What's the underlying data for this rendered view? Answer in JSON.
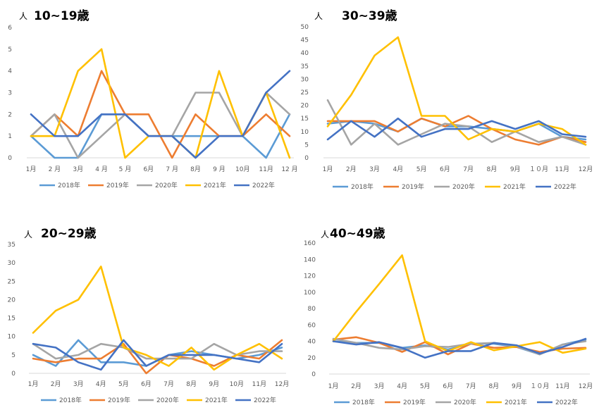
{
  "chart_data": [
    {
      "type": "line",
      "title": "10~19歳",
      "ylabel": "人",
      "categories": [
        "1月",
        "2 月",
        "3月",
        "4 月",
        "5 月",
        "6月",
        "7 月",
        "8月",
        "9 月",
        "10月",
        "11月",
        "12 月"
      ],
      "ylim": [
        0,
        6
      ],
      "yticks": [
        "0",
        "1",
        "2",
        "3",
        "4",
        "5",
        "6"
      ],
      "grid": false,
      "legend": "bottom",
      "series": [
        {
          "name": "2018年",
          "color": "#5b9bd5",
          "values": [
            1,
            0,
            0,
            2,
            2,
            1,
            1,
            1,
            1,
            1,
            0,
            2
          ]
        },
        {
          "name": "2019年",
          "color": "#ed7d31",
          "values": [
            1,
            2,
            1,
            4,
            2,
            2,
            0,
            2,
            1,
            1,
            2,
            1
          ]
        },
        {
          "name": "2020年",
          "color": "#a5a5a5",
          "values": [
            1,
            2,
            0,
            1,
            2,
            1,
            1,
            3,
            3,
            1,
            3,
            2
          ]
        },
        {
          "name": "2021年",
          "color": "#ffc000",
          "values": [
            1,
            1,
            4,
            5,
            0,
            1,
            1,
            0,
            4,
            1,
            3,
            0
          ]
        },
        {
          "name": "2022年",
          "color": "#4472c4",
          "values": [
            2,
            1,
            1,
            2,
            2,
            1,
            1,
            0,
            1,
            1,
            3,
            4
          ]
        }
      ]
    },
    {
      "type": "line",
      "title": "30~39歳",
      "ylabel": "人",
      "categories": [
        "1月",
        "2月",
        "3月",
        "4月",
        "5月",
        "6月",
        "7月",
        "8月",
        "9月",
        "１０月",
        "11月",
        "12月"
      ],
      "ylim": [
        0,
        50
      ],
      "yticks": [
        "0",
        "5",
        "10",
        "15",
        "20",
        "25",
        "30",
        "35",
        "40",
        "45",
        "50"
      ],
      "grid": false,
      "legend": "bottom",
      "series": [
        {
          "name": "2018年",
          "color": "#5b9bd5",
          "values": [
            13,
            14,
            13,
            10,
            15,
            12,
            12,
            11,
            10,
            13,
            8,
            7
          ]
        },
        {
          "name": "2019年",
          "color": "#ed7d31",
          "values": [
            14,
            14,
            14,
            10,
            15,
            12,
            16,
            11,
            7,
            5,
            8,
            6
          ]
        },
        {
          "name": "2020年",
          "color": "#a5a5a5",
          "values": [
            22,
            5,
            13,
            5,
            9,
            13,
            12,
            6,
            10,
            6,
            8,
            5
          ]
        },
        {
          "name": "2021年",
          "color": "#ffc000",
          "values": [
            12,
            24,
            39,
            46,
            16,
            16,
            7,
            11,
            10,
            13,
            11,
            5
          ]
        },
        {
          "name": "2022年",
          "color": "#4472c4",
          "values": [
            7,
            14,
            8,
            15,
            8,
            11,
            11,
            14,
            11,
            14,
            9,
            8
          ]
        }
      ]
    },
    {
      "type": "line",
      "title": "20~29歳",
      "ylabel": "人",
      "categories": [
        "1月",
        "2月",
        "3月",
        "4月",
        "5月",
        "6月",
        "7月",
        "8月",
        "9月",
        "10月",
        "11月",
        "12月"
      ],
      "ylim": [
        0,
        35
      ],
      "yticks": [
        "0",
        "5",
        "10",
        "15",
        "20",
        "25",
        "30",
        "35"
      ],
      "grid": false,
      "legend": "bottom",
      "series": [
        {
          "name": "2018年",
          "color": "#5b9bd5",
          "values": [
            5,
            2,
            9,
            3,
            3,
            2,
            5,
            6,
            5,
            4,
            5,
            7
          ]
        },
        {
          "name": "2019年",
          "color": "#ed7d31",
          "values": [
            4,
            3,
            4,
            4,
            8,
            0,
            5,
            4,
            2,
            5,
            4,
            9
          ]
        },
        {
          "name": "2020年",
          "color": "#a5a5a5",
          "values": [
            8,
            4,
            5,
            8,
            7,
            4,
            4,
            4,
            8,
            5,
            6,
            6
          ]
        },
        {
          "name": "2021年",
          "color": "#ffc000",
          "values": [
            11,
            17,
            20,
            29,
            7,
            5,
            2,
            7,
            1,
            5,
            8,
            4
          ]
        },
        {
          "name": "2022年",
          "color": "#4472c4",
          "values": [
            8,
            7,
            3,
            1,
            9,
            2,
            5,
            5,
            5,
            4,
            3,
            8
          ]
        }
      ]
    },
    {
      "type": "line",
      "title": "40~49歳",
      "ylabel": "人",
      "categories": [
        "1月",
        "2月",
        "3月",
        "4月",
        "5月",
        "6月",
        "7月",
        "8月",
        "9月",
        "１０月",
        "11月",
        "12月"
      ],
      "ylim": [
        0,
        160
      ],
      "yticks": [
        "0",
        "20",
        "40",
        "60",
        "80",
        "100",
        "120",
        "140",
        "160"
      ],
      "grid": false,
      "legend": "bottom",
      "series": [
        {
          "name": "2018年",
          "color": "#5b9bd5",
          "values": [
            40,
            38,
            38,
            32,
            35,
            30,
            37,
            37,
            33,
            24,
            36,
            42
          ]
        },
        {
          "name": "2019年",
          "color": "#ed7d31",
          "values": [
            42,
            45,
            38,
            27,
            39,
            24,
            37,
            32,
            33,
            27,
            31,
            32
          ]
        },
        {
          "name": "2020年",
          "color": "#a5a5a5",
          "values": [
            43,
            38,
            32,
            30,
            34,
            33,
            37,
            38,
            34,
            24,
            36,
            40
          ]
        },
        {
          "name": "2021年",
          "color": "#ffc000",
          "values": [
            40,
            76,
            110,
            145,
            40,
            28,
            39,
            29,
            34,
            39,
            26,
            31
          ]
        },
        {
          "name": "2022年",
          "color": "#4472c4",
          "values": [
            40,
            36,
            39,
            32,
            20,
            28,
            28,
            38,
            35,
            25,
            33,
            43
          ]
        }
      ]
    }
  ]
}
